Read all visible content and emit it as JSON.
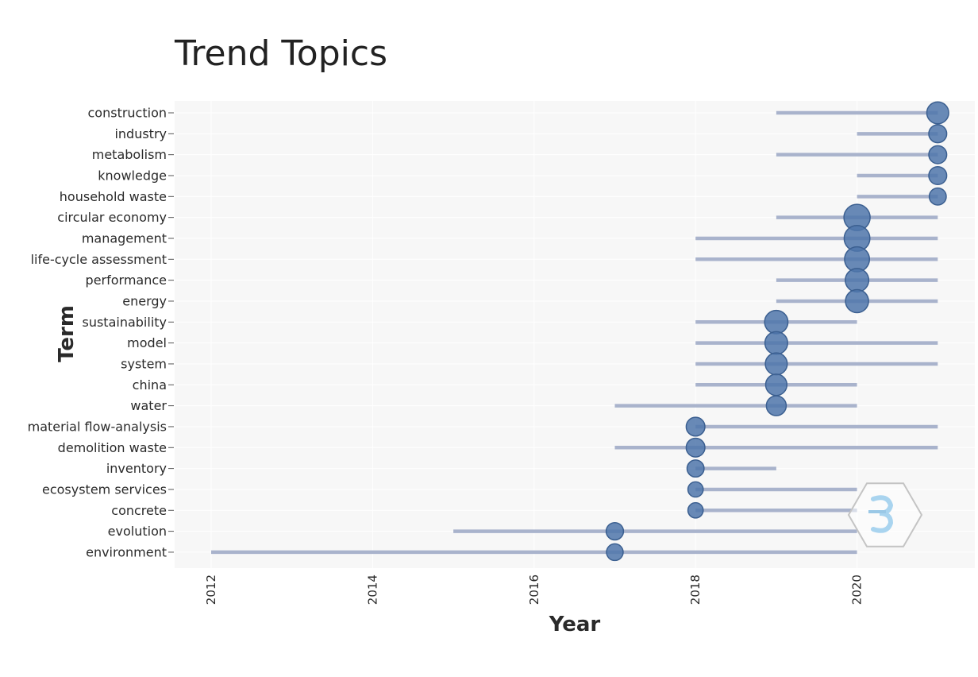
{
  "chart_data": {
    "type": "scatter",
    "title": "Trend Topics",
    "xlabel": "Year",
    "ylabel": "Term",
    "xlim": [
      2011.5,
      2021.5
    ],
    "x_ticks": [
      "2012",
      "2014",
      "2016",
      "2018",
      "2020"
    ],
    "grid": true,
    "legend": "none",
    "colors": {
      "bar": "#a9b3cc",
      "bubble": "#4f76aa",
      "bubble_edge": "#3b5f90",
      "panel": "#f7f7f7",
      "grid": "#ffffff"
    },
    "terms": [
      {
        "term": "construction",
        "start": 2019,
        "end": 2021,
        "median": 2021,
        "size": 0.55
      },
      {
        "term": "industry",
        "start": 2020,
        "end": 2021,
        "median": 2021,
        "size": 0.25
      },
      {
        "term": "metabolism",
        "start": 2019,
        "end": 2021,
        "median": 2021,
        "size": 0.25
      },
      {
        "term": "knowledge",
        "start": 2020,
        "end": 2021,
        "median": 2021,
        "size": 0.25
      },
      {
        "term": "household waste",
        "start": 2020,
        "end": 2021,
        "median": 2021,
        "size": 0.2
      },
      {
        "term": "circular economy",
        "start": 2019,
        "end": 2021,
        "median": 2020,
        "size": 1.0
      },
      {
        "term": "management",
        "start": 2018,
        "end": 2021,
        "median": 2020,
        "size": 0.95
      },
      {
        "term": "life-cycle assessment",
        "start": 2018,
        "end": 2021,
        "median": 2020,
        "size": 0.85
      },
      {
        "term": "performance",
        "start": 2019,
        "end": 2021,
        "median": 2020,
        "size": 0.7
      },
      {
        "term": "energy",
        "start": 2019,
        "end": 2021,
        "median": 2020,
        "size": 0.65
      },
      {
        "term": "sustainability",
        "start": 2018,
        "end": 2020,
        "median": 2019,
        "size": 0.68
      },
      {
        "term": "model",
        "start": 2018,
        "end": 2021,
        "median": 2019,
        "size": 0.62
      },
      {
        "term": "system",
        "start": 2018,
        "end": 2021,
        "median": 2019,
        "size": 0.55
      },
      {
        "term": "china",
        "start": 2018,
        "end": 2020,
        "median": 2019,
        "size": 0.5
      },
      {
        "term": "water",
        "start": 2017,
        "end": 2020,
        "median": 2019,
        "size": 0.38
      },
      {
        "term": "material flow-analysis",
        "start": 2018,
        "end": 2021,
        "median": 2018,
        "size": 0.3
      },
      {
        "term": "demolition waste",
        "start": 2017,
        "end": 2021,
        "median": 2018,
        "size": 0.3
      },
      {
        "term": "inventory",
        "start": 2018,
        "end": 2019,
        "median": 2018,
        "size": 0.2
      },
      {
        "term": "ecosystem services",
        "start": 2018,
        "end": 2020,
        "median": 2018,
        "size": 0.12
      },
      {
        "term": "concrete",
        "start": 2018,
        "end": 2020,
        "median": 2018,
        "size": 0.12
      },
      {
        "term": "evolution",
        "start": 2015,
        "end": 2020,
        "median": 2017,
        "size": 0.22
      },
      {
        "term": "environment",
        "start": 2012,
        "end": 2020,
        "median": 2017,
        "size": 0.18
      }
    ]
  }
}
